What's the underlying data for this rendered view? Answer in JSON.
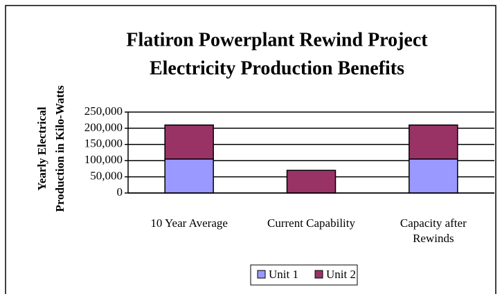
{
  "chart_data": {
    "type": "stacked_bar",
    "title": [
      "Flatiron Powerplant Rewind Project",
      "Electricity Production Benefits"
    ],
    "y_label": [
      "Yearly Electrical",
      "Production in Kilo-Watts"
    ],
    "categories": [
      "10 Year Average",
      "Current Capability",
      "Capacity after Rewinds"
    ],
    "series": [
      {
        "name": "Unit 1",
        "color": "#9999ff",
        "values": [
          105000,
          0,
          105000
        ]
      },
      {
        "name": "Unit 2",
        "color": "#993366",
        "values": [
          105000,
          70000,
          105000
        ]
      }
    ],
    "ylim": [
      0,
      250000
    ],
    "yticks": [
      0,
      {
        "value": 50000,
        "label": "50,000"
      },
      {
        "value": 100000,
        "label": "100,000"
      },
      {
        "value": 150000,
        "label": "150,000"
      },
      {
        "value": 200000,
        "label": "200,000"
      },
      {
        "value": 250000,
        "label": "250,000"
      }
    ],
    "grid": true,
    "legend": "bottom"
  }
}
